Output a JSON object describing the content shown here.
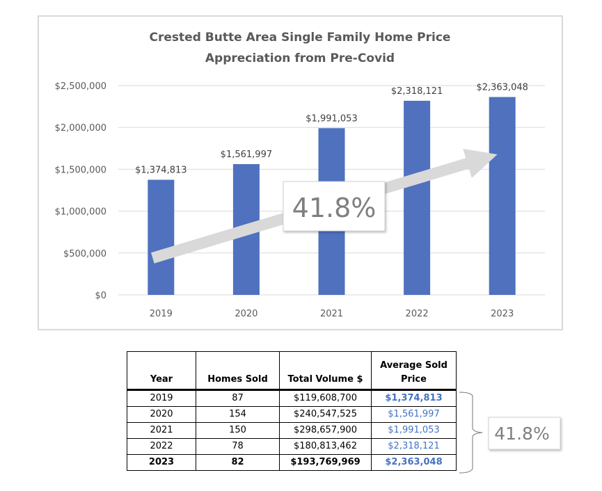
{
  "chart_data": {
    "type": "bar",
    "title": "Crested Butte Area Single Family Home Price Appreciation from Pre-Covid",
    "title_lines": [
      "Crested Butte Area Single Family Home Price",
      "Appreciation from Pre-Covid"
    ],
    "categories": [
      "2019",
      "2020",
      "2021",
      "2022",
      "2023"
    ],
    "values": [
      1374813,
      1561997,
      1991053,
      2318121,
      2363048
    ],
    "data_labels": [
      "$1,374,813",
      "$1,561,997",
      "$1,991,053",
      "$2,318,121",
      "$2,363,048"
    ],
    "xlabel": "",
    "ylabel": "",
    "ylim": [
      0,
      2500000
    ],
    "yticks": [
      0,
      500000,
      1000000,
      1500000,
      2000000,
      2500000
    ],
    "ytick_labels": [
      "$0",
      "$500,000",
      "$1,000,000",
      "$1,500,000",
      "$2,000,000",
      "$2,500,000"
    ],
    "grid": true,
    "legend": "none",
    "bar_color": "#4f71be",
    "annotation": {
      "type": "trend-arrow",
      "label": "41.8%",
      "from_category": "2019",
      "to_category": "2023"
    }
  },
  "table": {
    "headers": [
      "Year",
      "Homes Sold",
      "Total Volume $",
      "Average Sold Price"
    ],
    "header_lines": [
      [
        "Year"
      ],
      [
        "Homes Sold"
      ],
      [
        "Total Volume $"
      ],
      [
        "Average Sold",
        "Price"
      ]
    ],
    "rows": [
      {
        "year": "2019",
        "homes_sold": "87",
        "total_volume": "$119,608,700",
        "avg_price": "$1,374,813"
      },
      {
        "year": "2020",
        "homes_sold": "154",
        "total_volume": "$240,547,525",
        "avg_price": "$1,561,997"
      },
      {
        "year": "2021",
        "homes_sold": "150",
        "total_volume": "$298,657,900",
        "avg_price": "$1,991,053"
      },
      {
        "year": "2022",
        "homes_sold": "78",
        "total_volume": "$180,813,462",
        "avg_price": "$2,318,121"
      },
      {
        "year": "2023",
        "homes_sold": "82",
        "total_volume": "$193,769,969",
        "avg_price": "$2,363,048"
      }
    ],
    "avg_price_color": "#4472c4"
  },
  "table_callout": {
    "label": "41.8%"
  }
}
